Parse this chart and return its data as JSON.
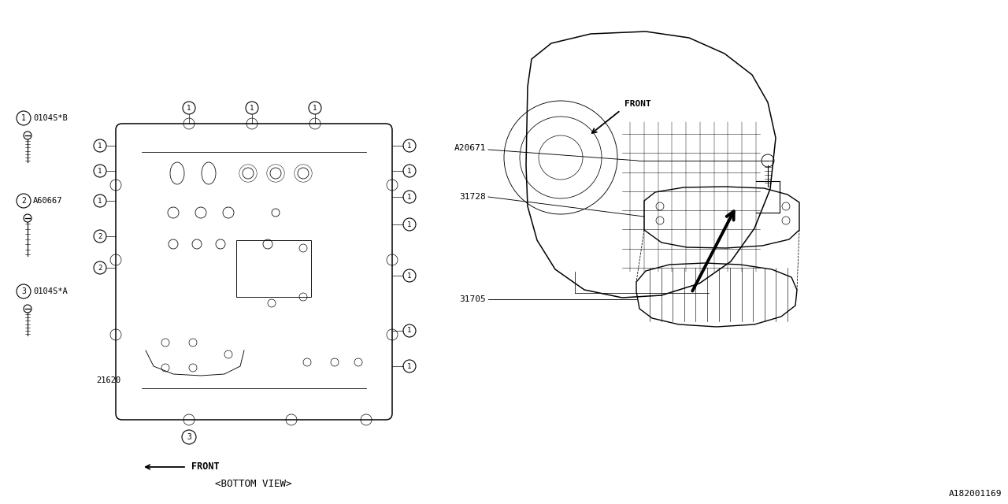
{
  "bg_color": "#ffffff",
  "line_color": "#000000",
  "fig_width": 12.8,
  "fig_height": 6.4,
  "watermark": "A182001169",
  "item1_code": "0104S*B",
  "item2_code": "A60667",
  "item3_code": "0104S*A",
  "part21620": "21620",
  "part31705": "31705",
  "part31728": "31728",
  "partA20671": "A20671",
  "bottom_view_label": "<BOTTOM VIEW>",
  "front_label": "FRONT"
}
